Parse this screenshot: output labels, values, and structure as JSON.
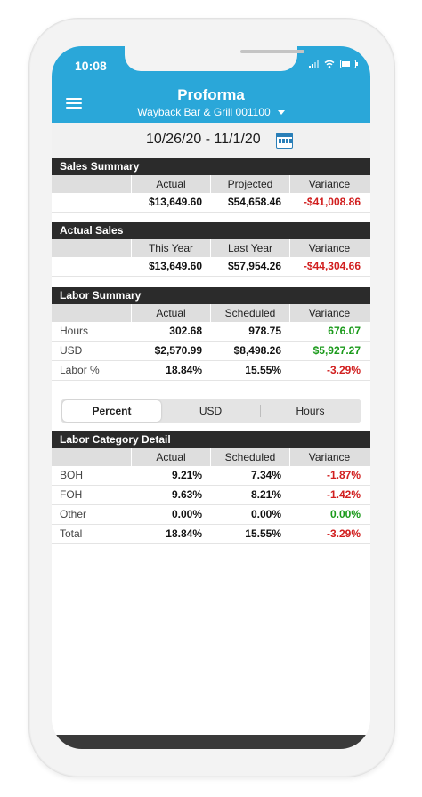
{
  "status_bar": {
    "time": "10:08",
    "icons": [
      "signal-icon",
      "wifi-icon",
      "battery-icon"
    ]
  },
  "header": {
    "title": "Proforma",
    "location": "Wayback Bar & Grill 001100",
    "menu_icon": "hamburger-menu-icon"
  },
  "date_range": {
    "label": "10/26/20 - 11/1/20",
    "icon": "calendar-icon"
  },
  "sales_summary": {
    "title": "Sales Summary",
    "columns": [
      "",
      "Actual",
      "Projected",
      "Variance"
    ],
    "rows": [
      {
        "label": "",
        "values": [
          "$13,649.60",
          "$54,658.46",
          "-$41,008.86"
        ]
      }
    ]
  },
  "actual_sales": {
    "title": "Actual Sales",
    "columns": [
      "",
      "This Year",
      "Last Year",
      "Variance"
    ],
    "rows": [
      {
        "label": "",
        "values": [
          "$13,649.60",
          "$57,954.26",
          "-$44,304.66"
        ]
      }
    ]
  },
  "labor_summary": {
    "title": "Labor Summary",
    "columns": [
      "",
      "Actual",
      "Scheduled",
      "Variance"
    ],
    "rows": [
      {
        "label": "Hours",
        "values": [
          "302.68",
          "978.75",
          "676.07"
        ]
      },
      {
        "label": "USD",
        "values": [
          "$2,570.99",
          "$8,498.26",
          "$5,927.27"
        ]
      },
      {
        "label": "Labor %",
        "values": [
          "18.84%",
          "15.55%",
          "-3.29%"
        ]
      }
    ]
  },
  "segment": {
    "options": [
      "Percent",
      "USD",
      "Hours"
    ],
    "selected": "Percent"
  },
  "labor_category_detail": {
    "title": "Labor Category Detail",
    "columns": [
      "",
      "Actual",
      "Scheduled",
      "Variance"
    ],
    "rows": [
      {
        "label": "BOH",
        "values": [
          "9.21%",
          "7.34%",
          "-1.87%"
        ]
      },
      {
        "label": "FOH",
        "values": [
          "9.63%",
          "8.21%",
          "-1.42%"
        ]
      },
      {
        "label": "Other",
        "values": [
          "0.00%",
          "0.00%",
          "0.00%"
        ]
      },
      {
        "label": "Total",
        "values": [
          "18.84%",
          "15.55%",
          "-3.29%"
        ]
      }
    ]
  },
  "colors": {
    "header": "#2aa7d9",
    "section_header": "#2b2b2b",
    "negative": "#d11f1f",
    "positive": "#1b9a1b",
    "column_header": "#dedede"
  }
}
